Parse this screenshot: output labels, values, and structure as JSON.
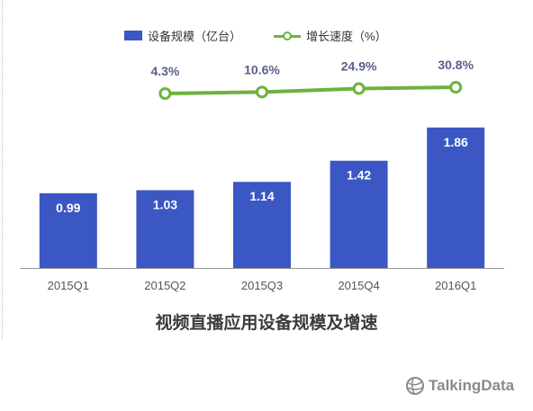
{
  "legend": {
    "bar_label": "设备规模（亿台）",
    "line_label": "增长速度（%）"
  },
  "colors": {
    "bar": "#3a57c4",
    "line": "#6cb33e",
    "line_label": "#5a5f8a",
    "axis_text": "#555555"
  },
  "chart_data": {
    "type": "bar",
    "title": "视频直播应用设备规模及增速",
    "categories": [
      "2015Q1",
      "2015Q2",
      "2015Q3",
      "2015Q4",
      "2016Q1"
    ],
    "series": [
      {
        "name": "设备规模（亿台）",
        "type": "bar",
        "values": [
          0.99,
          1.03,
          1.14,
          1.42,
          1.86
        ],
        "labels": [
          "0.99",
          "1.03",
          "1.14",
          "1.42",
          "1.86"
        ]
      },
      {
        "name": "增长速度（%）",
        "type": "line",
        "x": [
          "2015Q2",
          "2015Q3",
          "2015Q4",
          "2016Q1"
        ],
        "values": [
          4.3,
          10.6,
          24.9,
          30.8
        ],
        "labels": [
          "4.3%",
          "10.6%",
          "24.9%",
          "30.8%"
        ]
      }
    ],
    "ylim": [
      0,
      2.0
    ],
    "grid": false,
    "legend_position": "top"
  },
  "watermark": {
    "text": "TalkingData",
    "icon": "globe-icon"
  }
}
